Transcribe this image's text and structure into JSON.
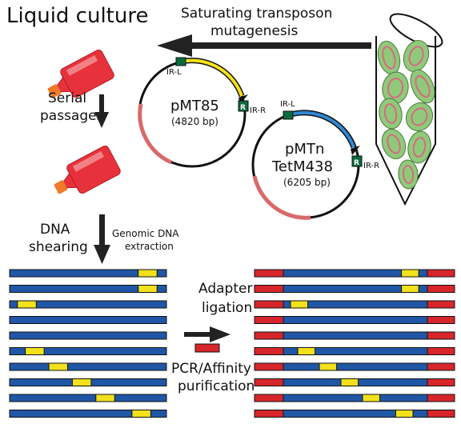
{
  "title": "Liquid culture",
  "top_arrow_label_1": "Saturating transposon",
  "top_arrow_label_2": "mutagenesis",
  "serial_passages_1": "Serial",
  "serial_passages_2": "passages",
  "dna_shearing_1": "DNA",
  "dna_shearing_2": "shearing",
  "genomic_1": "Genomic DNA",
  "genomic_2": "extraction",
  "adapter_1": "Adapter",
  "adapter_2": "ligation",
  "pcr_1": "PCR/Affinity",
  "pcr_2": "purification",
  "plasmid1": {
    "name": "pMT85",
    "size": "(4820 bp)",
    "irl": "IR-L",
    "irr": "IR-R",
    "r": "R"
  },
  "plasmid2": {
    "name1": "pMTn",
    "name2": "TetM438",
    "size": "(6205 bp)",
    "irl": "IR-L",
    "irr": "IR-R",
    "r": "R"
  },
  "colors": {
    "dna": "#1f57a6",
    "insert": "#f2e11b",
    "adapter": "#d7262b",
    "flask": "#e8323b",
    "cell_fill": "#8fc97a",
    "cell_inner": "#d86a84",
    "irl_box": "#0a6a3f",
    "yellow_arc": "#f5e31b",
    "blue_arc": "#2f8ad4",
    "pink_arc": "#d86a6a"
  },
  "left_inserts": [
    [
      0.82,
      0.94
    ],
    [
      0.82,
      0.94
    ],
    [
      0.05,
      0.17
    ],
    [
      null,
      null
    ],
    [
      null,
      null
    ],
    [
      0.1,
      0.22
    ],
    [
      0.25,
      0.37
    ],
    [
      0.4,
      0.52
    ],
    [
      0.55,
      0.67
    ],
    [
      0.78,
      0.9
    ]
  ]
}
